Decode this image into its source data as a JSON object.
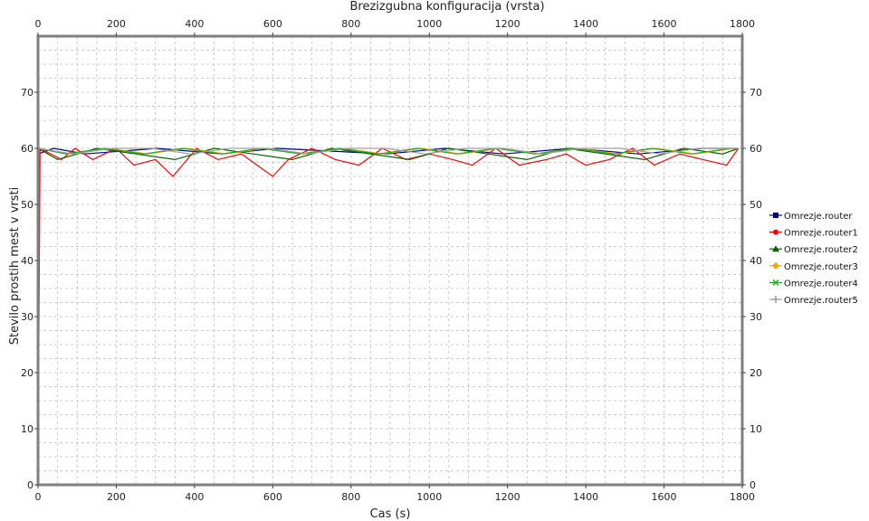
{
  "chart_data": {
    "type": "line",
    "title": "Brezizgubna konfiguracija (vrsta)",
    "xlabel": "Cas (s)",
    "ylabel": "Stevilo prostih mest v vrsti",
    "xlim": [
      0,
      1800
    ],
    "ylim": [
      0,
      80
    ],
    "x_ticks": [
      0,
      200,
      400,
      600,
      800,
      1000,
      1200,
      1400,
      1600,
      1800
    ],
    "y_ticks": [
      0,
      10,
      20,
      30,
      40,
      50,
      60,
      70
    ],
    "grid": true,
    "legend_position": "right",
    "series": [
      {
        "name": "Omrezje.router",
        "color": "#00008b",
        "marker": "square",
        "x": [
          0,
          40,
          120,
          305,
          470,
          610,
          890,
          1040,
          1190,
          1365,
          1535,
          1700,
          1785
        ],
        "y": [
          59,
          60,
          59,
          60,
          59,
          60,
          59,
          60,
          59,
          60,
          59,
          60,
          60
        ]
      },
      {
        "name": "Omrezje.router1",
        "color": "#ff0000",
        "marker": "circle",
        "x": [
          0,
          5,
          60,
          95,
          140,
          200,
          245,
          300,
          345,
          405,
          460,
          520,
          560,
          600,
          640,
          700,
          760,
          820,
          880,
          940,
          1000,
          1060,
          1110,
          1170,
          1230,
          1300,
          1350,
          1400,
          1460,
          1520,
          1575,
          1640,
          1700,
          1760,
          1790
        ],
        "y": [
          0,
          60,
          58,
          60,
          58,
          60,
          57,
          58,
          55,
          60,
          58,
          59,
          57,
          55,
          58,
          60,
          58,
          57,
          60,
          58,
          59,
          58,
          57,
          60,
          57,
          58,
          59,
          57,
          58,
          60,
          57,
          59,
          58,
          57,
          60
        ]
      },
      {
        "name": "Omrezje.router2",
        "color": "#006400",
        "marker": "triangle",
        "x": [
          0,
          50,
          150,
          250,
          350,
          450,
          550,
          650,
          750,
          850,
          950,
          1050,
          1150,
          1250,
          1350,
          1450,
          1550,
          1650,
          1750,
          1790
        ],
        "y": [
          60,
          58,
          60,
          59,
          58,
          60,
          59,
          58,
          60,
          59,
          58,
          60,
          59,
          58,
          60,
          59,
          58,
          60,
          59,
          60
        ]
      },
      {
        "name": "Omrezje.router3",
        "color": "#ffa500",
        "marker": "diamond",
        "x": [
          0,
          80,
          180,
          280,
          380,
          480,
          580,
          680,
          780,
          880,
          980,
          1080,
          1180,
          1280,
          1380,
          1480,
          1580,
          1680,
          1780
        ],
        "y": [
          60,
          59,
          60,
          59,
          60,
          59,
          60,
          59,
          60,
          59,
          60,
          59,
          60,
          59,
          60,
          59,
          60,
          59,
          60
        ]
      },
      {
        "name": "Omrezje.router4",
        "color": "#22aa22",
        "marker": "x",
        "x": [
          0,
          70,
          170,
          270,
          370,
          470,
          570,
          670,
          770,
          870,
          970,
          1070,
          1170,
          1270,
          1370,
          1470,
          1570,
          1670,
          1770
        ],
        "y": [
          60,
          59,
          60,
          59,
          60,
          59,
          60,
          59,
          60,
          59,
          60,
          59,
          60,
          59,
          60,
          59,
          60,
          59,
          60
        ]
      },
      {
        "name": "Omrezje.router5",
        "color": "#a0a0a0",
        "marker": "plus",
        "x": [
          0,
          90,
          190,
          290,
          390,
          490,
          590,
          690,
          790,
          890,
          990,
          1090,
          1190,
          1290,
          1390,
          1490,
          1590,
          1690,
          1790
        ],
        "y": [
          60,
          59,
          60,
          60,
          59,
          60,
          60,
          59,
          60,
          60,
          59,
          60,
          60,
          59,
          60,
          60,
          59,
          60,
          60
        ]
      }
    ]
  }
}
